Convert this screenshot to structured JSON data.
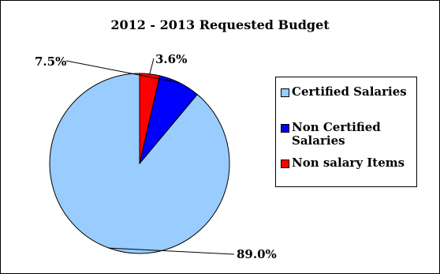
{
  "chart_data": {
    "type": "pie",
    "title": "2012 - 2013 Requested Budget",
    "categories": [
      "Certified Salaries",
      "Non Certified Salaries",
      "Non salary Items"
    ],
    "values": [
      89.0,
      7.5,
      3.6
    ],
    "data_labels": [
      "89.0%",
      "7.5%",
      "3.6%"
    ],
    "colors": [
      "#99ccff",
      "#0000ff",
      "#ff0000"
    ],
    "legend_position": "right",
    "start": "12 o'clock",
    "direction": "counter-clockwise"
  }
}
